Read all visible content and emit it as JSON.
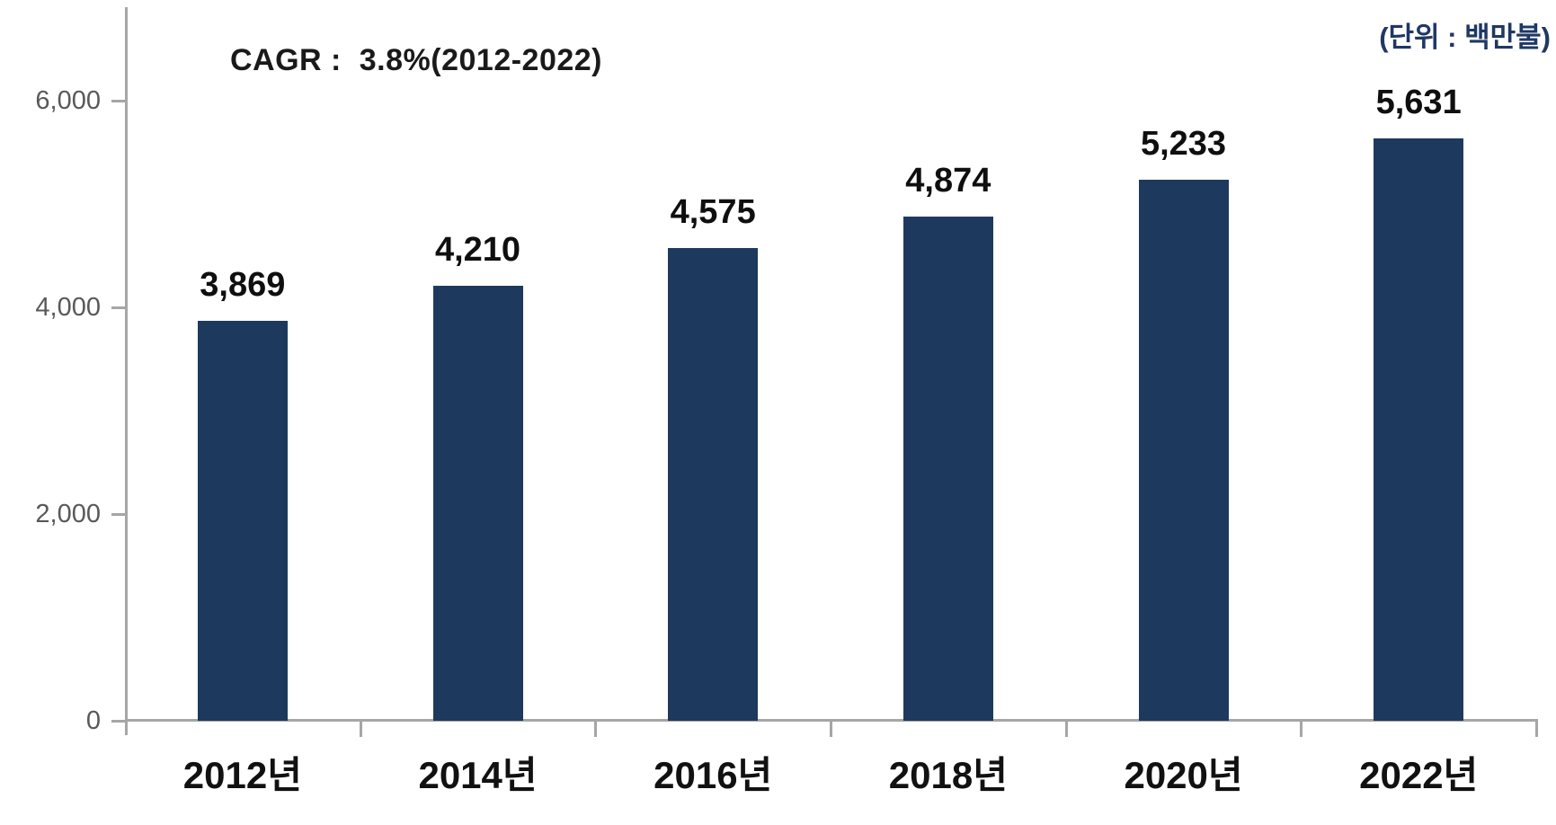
{
  "chart_data": {
    "type": "bar",
    "title": "",
    "categories": [
      "2012년",
      "2014년",
      "2016년",
      "2018년",
      "2020년",
      "2022년"
    ],
    "values": [
      3869,
      4210,
      4575,
      4874,
      5233,
      5631
    ],
    "value_labels": [
      "3,869",
      "4,210",
      "4,575",
      "4,874",
      "5,233",
      "5,631"
    ],
    "xlabel": "",
    "ylabel": "",
    "ylim": [
      0,
      7000
    ],
    "yticks": [
      {
        "value": 0,
        "label": "0"
      },
      {
        "value": 2000,
        "label": "2,000"
      },
      {
        "value": 4000,
        "label": "4,000"
      },
      {
        "value": 6000,
        "label": "6,000"
      }
    ],
    "grid": false,
    "legend": null,
    "annotations": {
      "cagr": "CAGR :  3.8%(2012-2022)",
      "unit": "(단위 : 백만불)"
    },
    "colors": {
      "bar": "#1d3a5e",
      "axis": "#a6a6a6",
      "ytick_text": "#595959",
      "value_text": "#0f0f0f",
      "xtick_text": "#111111",
      "unit_text": "#1f3864",
      "cagr_text": "#1a1a1a"
    }
  }
}
